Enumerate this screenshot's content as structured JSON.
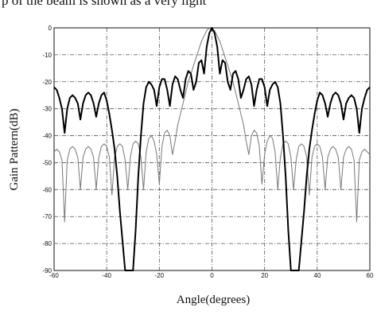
{
  "caption": "p of the beam is shown as a very light",
  "chart_data": {
    "type": "line",
    "xlabel": "Angle(degrees)",
    "ylabel": "Gain Pattern(dB)",
    "xlim": [
      -60,
      60
    ],
    "ylim": [
      -90,
      0
    ],
    "xticks": [
      -60,
      -40,
      -20,
      0,
      20,
      40,
      60
    ],
    "yticks": [
      0,
      -10,
      -20,
      -30,
      -40,
      -50,
      -60,
      -70,
      -80,
      -90
    ],
    "grid": true,
    "grid_style": "dash-dot",
    "series": [
      {
        "color": "#000000",
        "x": [
          -60,
          -59,
          -58,
          -57,
          -56,
          -55,
          -54,
          -53,
          -52,
          -51,
          -50,
          -49,
          -48,
          -47,
          -46,
          -45,
          -44,
          -43,
          -42,
          -41,
          -40,
          -39,
          -38,
          -37,
          -36,
          -35,
          -34,
          -33,
          -32,
          -31,
          -30,
          -29,
          -28,
          -27,
          -26,
          -25,
          -24,
          -23,
          -22,
          -21,
          -20,
          -19,
          -18,
          -17,
          -16,
          -15,
          -14,
          -13,
          -12,
          -11,
          -10,
          -9,
          -8,
          -7,
          -6,
          -5,
          -4,
          -3,
          -2,
          -1,
          0,
          1,
          2,
          3,
          4,
          5,
          6,
          7,
          8,
          9,
          10,
          11,
          12,
          13,
          14,
          15,
          16,
          17,
          18,
          19,
          20,
          21,
          22,
          23,
          24,
          25,
          26,
          27,
          28,
          29,
          30,
          31,
          32,
          33,
          34,
          35,
          36,
          37,
          38,
          39,
          40,
          41,
          42,
          43,
          44,
          45,
          46,
          47,
          48,
          49,
          50,
          51,
          52,
          53,
          54,
          55,
          56,
          57,
          58,
          59,
          60
        ],
        "y": [
          -22,
          -23,
          -26,
          -30,
          -39,
          -30,
          -26,
          -25,
          -26,
          -28,
          -34,
          -28,
          -25,
          -24,
          -25,
          -28,
          -33,
          -28,
          -25,
          -24,
          -27,
          -32,
          -38,
          -45,
          -55,
          -68,
          -79,
          -90,
          -90,
          -90,
          -90,
          -75,
          -55,
          -40,
          -28,
          -22,
          -20,
          -21,
          -23,
          -29,
          -22,
          -19,
          -19,
          -23,
          -29,
          -21,
          -18,
          -19,
          -23,
          -26,
          -19,
          -16,
          -17,
          -23,
          -20,
          -13,
          -12,
          -17,
          -7,
          -2,
          0,
          -2,
          -7,
          -17,
          -12,
          -13,
          -20,
          -23,
          -17,
          -16,
          -19,
          -26,
          -23,
          -19,
          -18,
          -21,
          -29,
          -23,
          -19,
          -19,
          -22,
          -29,
          -23,
          -21,
          -20,
          -22,
          -28,
          -40,
          -55,
          -75,
          -90,
          -90,
          -90,
          -90,
          -79,
          -68,
          -55,
          -45,
          -38,
          -32,
          -27,
          -24,
          -25,
          -28,
          -33,
          -28,
          -25,
          -24,
          -25,
          -28,
          -34,
          -28,
          -26,
          -25,
          -26,
          -30,
          -39,
          -30,
          -26,
          -23,
          -22
        ]
      },
      {
        "color": "#777777",
        "x": [
          -60,
          -59,
          -58,
          -57,
          -56,
          -55,
          -54,
          -53,
          -52,
          -51,
          -50,
          -49,
          -48,
          -47,
          -46,
          -45,
          -44,
          -43,
          -42,
          -41,
          -40,
          -39,
          -38,
          -37,
          -36,
          -35,
          -34,
          -33,
          -32,
          -31,
          -30,
          -29,
          -28,
          -27,
          -26,
          -25,
          -24,
          -23,
          -22,
          -21,
          -20,
          -19,
          -18,
          -17,
          -16,
          -15,
          -14,
          -13,
          -12,
          -11,
          -10,
          -9,
          -8,
          -7,
          -6,
          -5,
          -4,
          -3,
          -2,
          -1,
          0,
          1,
          2,
          3,
          4,
          5,
          6,
          7,
          8,
          9,
          10,
          11,
          12,
          13,
          14,
          15,
          16,
          17,
          18,
          19,
          20,
          21,
          22,
          23,
          24,
          25,
          26,
          27,
          28,
          29,
          30,
          31,
          32,
          33,
          34,
          35,
          36,
          37,
          38,
          39,
          40,
          41,
          42,
          43,
          44,
          45,
          46,
          47,
          48,
          49,
          50,
          51,
          52,
          53,
          54,
          55,
          56,
          57,
          58,
          59,
          60
        ],
        "y": [
          -46,
          -45,
          -46,
          -49,
          -72,
          -49,
          -45,
          -44,
          -45,
          -48,
          -60,
          -48,
          -45,
          -44,
          -45,
          -48,
          -60,
          -48,
          -44,
          -43,
          -44,
          -48,
          -62,
          -48,
          -44,
          -43,
          -44,
          -49,
          -60,
          -48,
          -43,
          -42,
          -43,
          -48,
          -60,
          -46,
          -41,
          -40,
          -42,
          -47,
          -58,
          -44,
          -39,
          -38,
          -40,
          -47,
          -42,
          -36,
          -32,
          -28,
          -24,
          -20,
          -17,
          -14,
          -11,
          -8,
          -5,
          -3,
          -1,
          0,
          -1,
          -1,
          -3,
          -5,
          -8,
          -11,
          -14,
          -17,
          -20,
          -24,
          -28,
          -32,
          -36,
          -42,
          -47,
          -40,
          -38,
          -39,
          -44,
          -58,
          -47,
          -42,
          -40,
          -41,
          -46,
          -60,
          -48,
          -43,
          -42,
          -43,
          -48,
          -60,
          -49,
          -44,
          -43,
          -44,
          -48,
          -62,
          -48,
          -44,
          -43,
          -44,
          -48,
          -60,
          -48,
          -45,
          -44,
          -45,
          -48,
          -60,
          -48,
          -45,
          -44,
          -45,
          -49,
          -72,
          -49,
          -46,
          -45,
          -46,
          -47
        ]
      }
    ]
  }
}
